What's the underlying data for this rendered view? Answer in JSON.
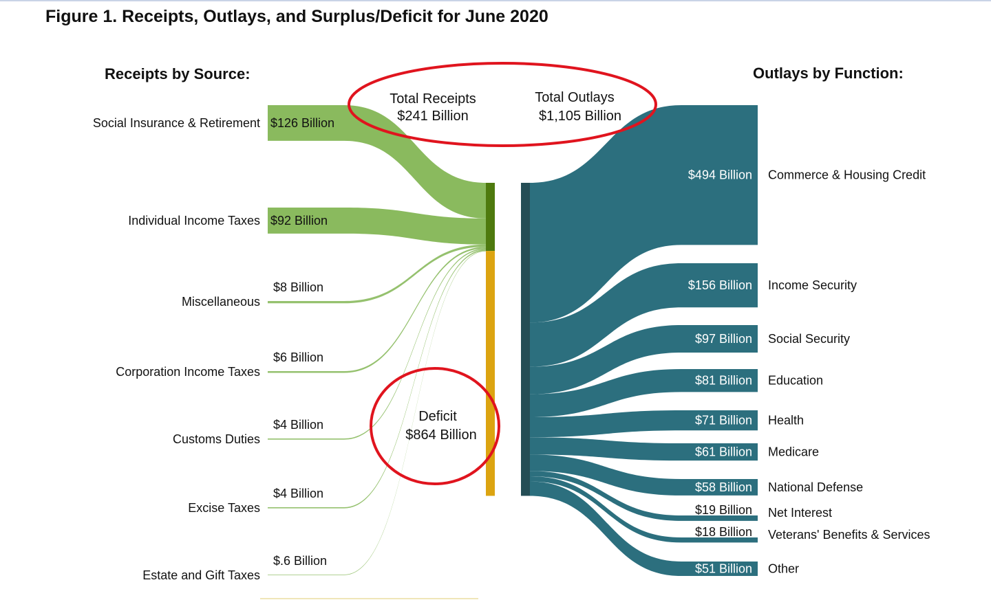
{
  "title": "Figure 1. Receipts, Outlays, and Surplus/Deficit for June 2020",
  "colors": {
    "receipt_flow": "#8aba5e",
    "receipt_node": "#4e7a0e",
    "deficit": "#dca411",
    "outlay_flow": "#2c6f7e",
    "outlay_node": "#244d55",
    "highlight": "#e0141e"
  },
  "receipts_header": "Receipts by Source:",
  "outlays_header": "Outlays by Function:",
  "totals": {
    "receipts_label": "Total Receipts",
    "receipts_value": "$241 Billion",
    "outlays_label": "Total Outlays",
    "outlays_value": "$1,105 Billion"
  },
  "deficit": {
    "label": "Deficit",
    "value": "$864 Billion"
  },
  "receipts": [
    {
      "name": "Social Insurance & Retirement",
      "value_label": "$126 Billion",
      "value": 126
    },
    {
      "name": "Individual Income Taxes",
      "value_label": "$92 Billion",
      "value": 92
    },
    {
      "name": "Miscellaneous",
      "value_label": "$8 Billion",
      "value": 8
    },
    {
      "name": "Corporation Income Taxes",
      "value_label": "$6 Billion",
      "value": 6
    },
    {
      "name": "Customs Duties",
      "value_label": "$4 Billion",
      "value": 4
    },
    {
      "name": "Excise Taxes",
      "value_label": "$4 Billion",
      "value": 4
    },
    {
      "name": "Estate and Gift Taxes",
      "value_label": "$.6 Billion",
      "value": 0.6
    }
  ],
  "outlays": [
    {
      "name": "Commerce & Housing Credit",
      "value_label": "$494 Billion",
      "value": 494
    },
    {
      "name": "Income Security",
      "value_label": "$156 Billion",
      "value": 156
    },
    {
      "name": "Social Security",
      "value_label": "$97 Billion",
      "value": 97
    },
    {
      "name": "Education",
      "value_label": "$81 Billion",
      "value": 81
    },
    {
      "name": "Health",
      "value_label": "$71 Billion",
      "value": 71
    },
    {
      "name": "Medicare",
      "value_label": "$61 Billion",
      "value": 61
    },
    {
      "name": "National Defense",
      "value_label": "$58 Billion",
      "value": 58
    },
    {
      "name": "Net Interest",
      "value_label": "$19 Billion",
      "value": 19
    },
    {
      "name": "Veterans' Benefits & Services",
      "value_label": "$18 Billion",
      "value": 18
    },
    {
      "name": "Other",
      "value_label": "$51 Billion",
      "value": 51
    }
  ]
}
